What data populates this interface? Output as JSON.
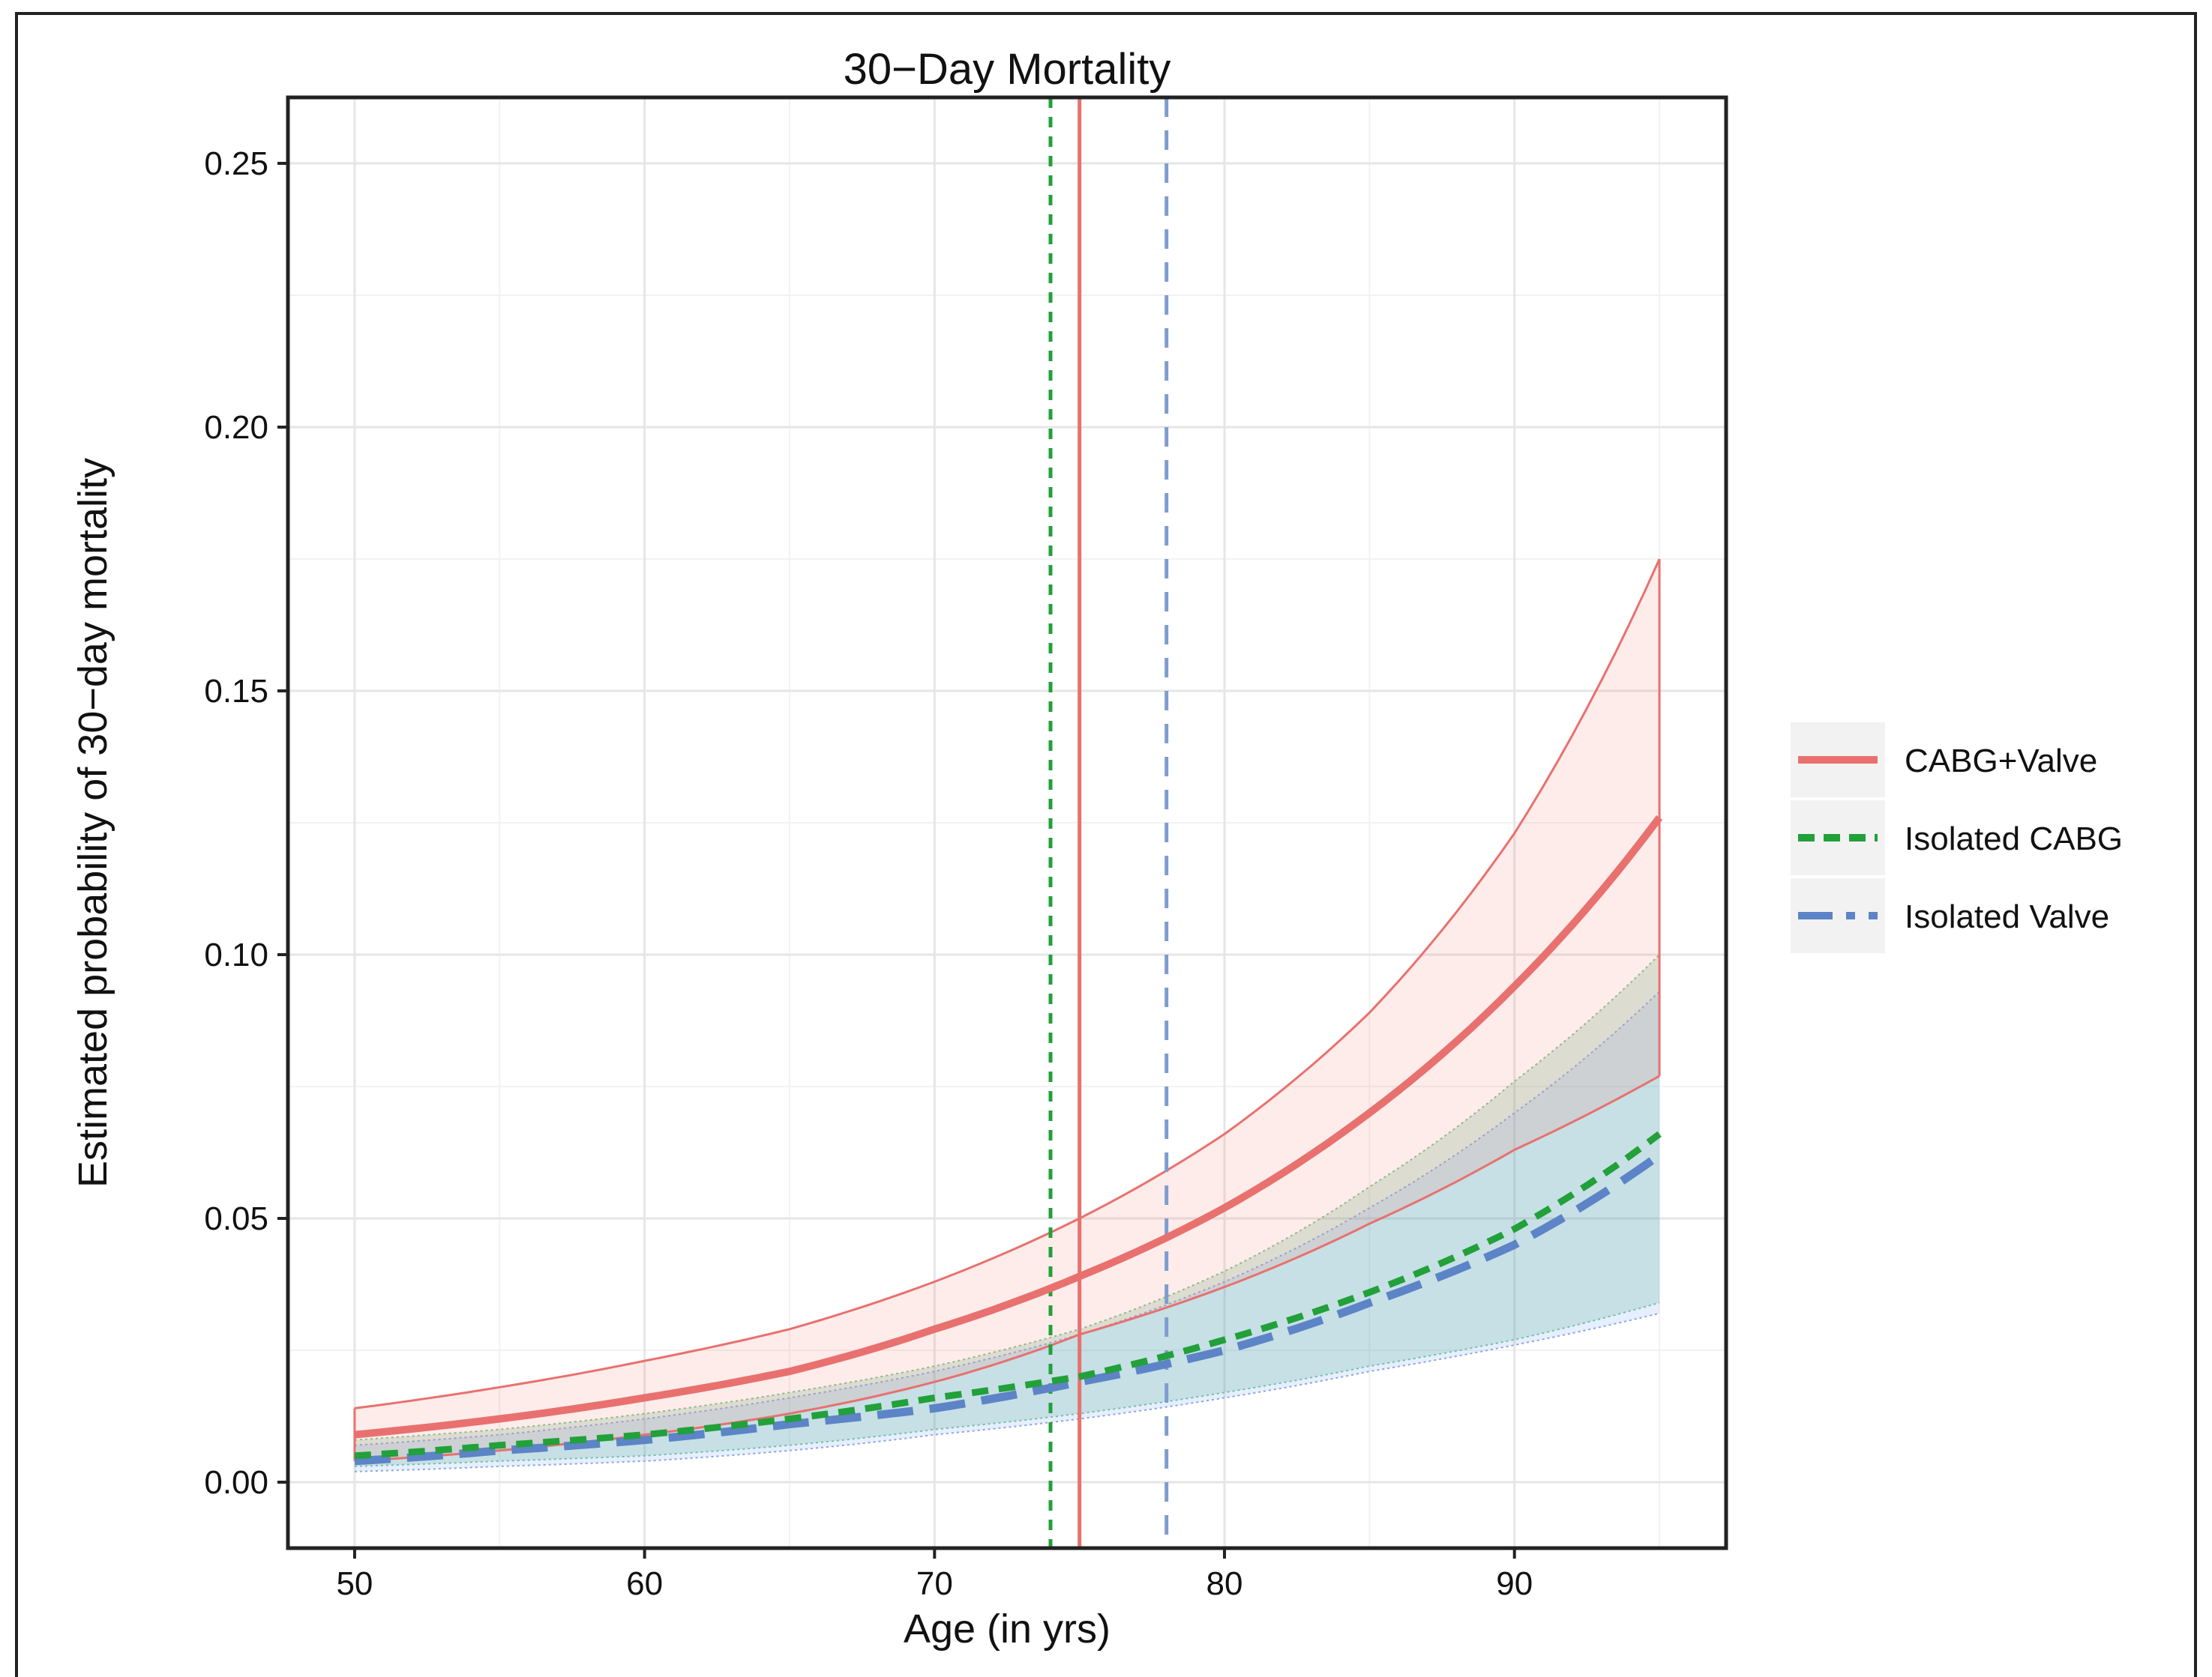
{
  "chart_data": {
    "type": "line",
    "title": "30−Day Mortality",
    "xlabel": "Age (in yrs)",
    "ylabel": "Estimated probability of 30−day mortality",
    "xlim": [
      47.7,
      97.3
    ],
    "ylim": [
      -0.0125,
      0.2625
    ],
    "x_ticks": [
      50,
      60,
      70,
      80,
      90
    ],
    "y_ticks": [
      0.0,
      0.05,
      0.1,
      0.15,
      0.2,
      0.25
    ],
    "x_tick_labels": [
      "50",
      "60",
      "70",
      "80",
      "90"
    ],
    "y_tick_labels": [
      "0.00",
      "0.05",
      "0.10",
      "0.15",
      "0.20",
      "0.25"
    ],
    "grid": true,
    "legend_position": "right",
    "x": [
      50,
      55,
      60,
      65,
      70,
      75,
      80,
      85,
      90,
      95
    ],
    "series": [
      {
        "name": "CABG+Valve",
        "color": "#E8716F",
        "style": "solid",
        "values": [
          0.009,
          0.012,
          0.016,
          0.021,
          0.029,
          0.039,
          0.052,
          0.07,
          0.094,
          0.126
        ],
        "lower": [
          0.004,
          0.006,
          0.009,
          0.013,
          0.019,
          0.028,
          0.037,
          0.049,
          0.063,
          0.077
        ],
        "upper": [
          0.014,
          0.018,
          0.023,
          0.029,
          0.038,
          0.05,
          0.066,
          0.089,
          0.123,
          0.175
        ]
      },
      {
        "name": "Isolated CABG",
        "color": "#22A03A",
        "style": "dotted",
        "values": [
          0.005,
          0.007,
          0.009,
          0.012,
          0.016,
          0.02,
          0.027,
          0.036,
          0.048,
          0.066
        ],
        "lower": [
          0.003,
          0.004,
          0.005,
          0.007,
          0.01,
          0.013,
          0.017,
          0.022,
          0.027,
          0.034
        ],
        "upper": [
          0.008,
          0.01,
          0.013,
          0.017,
          0.022,
          0.029,
          0.04,
          0.056,
          0.076,
          0.1
        ]
      },
      {
        "name": "Isolated Valve",
        "color": "#5C84C6",
        "style": "dashed",
        "values": [
          0.004,
          0.006,
          0.008,
          0.011,
          0.014,
          0.019,
          0.025,
          0.034,
          0.045,
          0.062
        ],
        "lower": [
          0.002,
          0.003,
          0.004,
          0.006,
          0.009,
          0.012,
          0.016,
          0.021,
          0.026,
          0.032
        ],
        "upper": [
          0.007,
          0.009,
          0.012,
          0.016,
          0.021,
          0.028,
          0.038,
          0.052,
          0.07,
          0.093
        ]
      }
    ],
    "vertical_lines": [
      {
        "x": 74,
        "series": "Isolated CABG",
        "color": "#22A03A",
        "style": "dotted"
      },
      {
        "x": 75,
        "series": "CABG+Valve",
        "color": "#E8716F",
        "style": "solid"
      },
      {
        "x": 78,
        "series": "Isolated Valve",
        "color": "#7F9CCF",
        "style": "dashed"
      }
    ]
  }
}
